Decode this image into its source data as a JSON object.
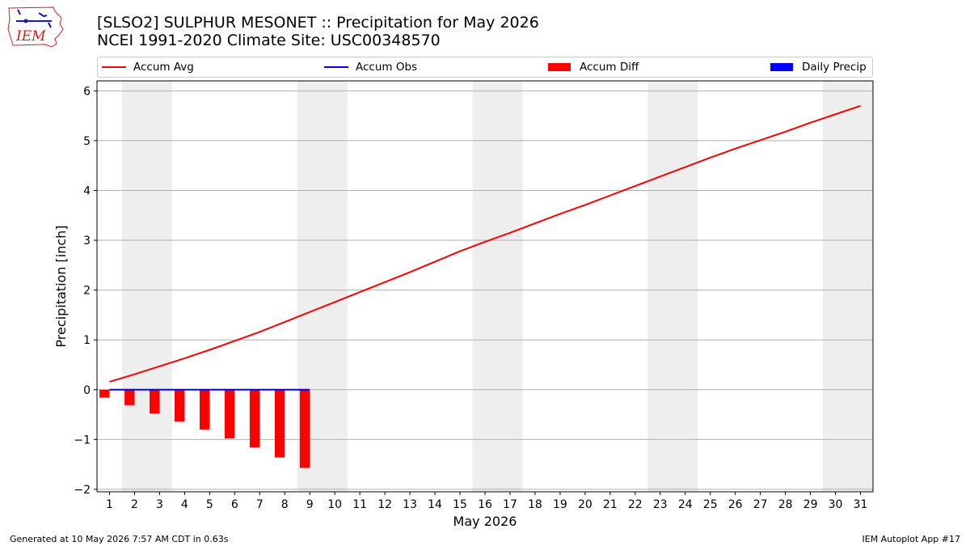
{
  "title_line1": "[SLSO2] SULPHUR MESONET :: Precipitation for May 2026",
  "title_line2": "NCEI 1991-2020 Climate Site: USC00348570",
  "logo_text": "IEM",
  "legend": [
    {
      "label": "Accum Avg",
      "kind": "line",
      "color": "#ff0000"
    },
    {
      "label": "Accum Obs",
      "kind": "line",
      "color": "#0000ff"
    },
    {
      "label": "Accum Diff",
      "kind": "box",
      "color": "#ff0000"
    },
    {
      "label": "Daily Precip",
      "kind": "box",
      "color": "#0000ff"
    }
  ],
  "footer_left": "Generated at 10 May 2026 7:57 AM CDT in 0.63s",
  "footer_right": "IEM Autoplot App #17",
  "chart_data": {
    "type": "bar",
    "xlabel": "May 2026",
    "ylabel": "Precipitation [inch]",
    "xlim": [
      0.5,
      31.5
    ],
    "ylim": [
      -2.05,
      6.2
    ],
    "x_ticks": [
      1,
      2,
      3,
      4,
      5,
      6,
      7,
      8,
      9,
      10,
      11,
      12,
      13,
      14,
      15,
      16,
      17,
      18,
      19,
      20,
      21,
      22,
      23,
      24,
      25,
      26,
      27,
      28,
      29,
      30,
      31
    ],
    "y_ticks": [
      -2,
      -1,
      0,
      1,
      2,
      3,
      4,
      5,
      6
    ],
    "grid": true,
    "weekend_shading": [
      [
        2,
        3
      ],
      [
        9,
        10
      ],
      [
        16,
        17
      ],
      [
        23,
        24
      ],
      [
        30,
        31
      ]
    ],
    "shade_color": "#eeeeee",
    "series": [
      {
        "name": "Accum Avg",
        "type": "line",
        "color": "#ff0000",
        "x": [
          1,
          2,
          3,
          4,
          5,
          6,
          7,
          8,
          9,
          10,
          11,
          12,
          13,
          14,
          15,
          16,
          17,
          18,
          19,
          20,
          21,
          22,
          23,
          24,
          25,
          26,
          27,
          28,
          29,
          30,
          31
        ],
        "values": [
          0.16,
          0.31,
          0.47,
          0.63,
          0.8,
          0.98,
          1.16,
          1.36,
          1.56,
          1.76,
          1.96,
          2.16,
          2.36,
          2.57,
          2.78,
          2.97,
          3.15,
          3.34,
          3.53,
          3.71,
          3.9,
          4.09,
          4.28,
          4.47,
          4.66,
          4.84,
          5.01,
          5.18,
          5.36,
          5.53,
          5.7
        ]
      },
      {
        "name": "Accum Obs",
        "type": "line",
        "color": "#0000ff",
        "x": [
          1,
          2,
          3,
          4,
          5,
          6,
          7,
          8,
          9
        ],
        "values": [
          0,
          0,
          0,
          0,
          0,
          0,
          0,
          0,
          0
        ]
      },
      {
        "name": "Accum Diff",
        "type": "bar",
        "color": "#ff0000",
        "x": [
          1,
          2,
          3,
          4,
          5,
          6,
          7,
          8,
          9
        ],
        "values": [
          -0.16,
          -0.31,
          -0.48,
          -0.64,
          -0.8,
          -0.98,
          -1.16,
          -1.36,
          -1.57
        ]
      },
      {
        "name": "Daily Precip",
        "type": "bar",
        "color": "#0000ff",
        "x": [
          1,
          2,
          3,
          4,
          5,
          6,
          7,
          8,
          9
        ],
        "values": [
          0,
          0,
          0,
          0,
          0,
          0,
          0,
          0,
          0
        ]
      }
    ]
  }
}
